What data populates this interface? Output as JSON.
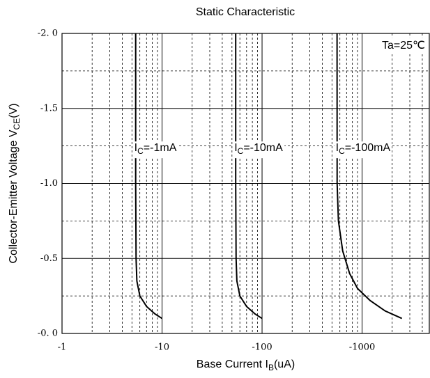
{
  "chart_data": {
    "type": "line",
    "title": "Static Characteristic",
    "x_label": {
      "text": "Base Current  I",
      "subscript": "B",
      "suffix": "(uA)"
    },
    "y_label": {
      "text": "Collector-Emitter Voltage  V",
      "subscript": "CE",
      "suffix": "(V)"
    },
    "annotation": "Ta=25℃",
    "x_log": true,
    "xlim": [
      -1,
      -4700
    ],
    "xticks": [
      -1,
      -10,
      -100,
      -1000
    ],
    "x_minor_ticks": [
      -2,
      -3,
      -4,
      -5,
      -6,
      -7,
      -8,
      -9,
      -20,
      -30,
      -40,
      -50,
      -60,
      -70,
      -80,
      -90,
      -200,
      -300,
      -400,
      -500,
      -600,
      -700,
      -800,
      -900,
      -2000,
      -3000,
      -4000
    ],
    "ylim": [
      0,
      -2
    ],
    "yticks": [
      {
        "value": 0,
        "label": "-0. 0"
      },
      -0.5,
      {
        "value": -1,
        "label": "-1.0"
      },
      -1.5,
      {
        "value": -2,
        "label": "-2. 0"
      }
    ],
    "y_minor_ticks": [
      -0.25,
      -0.75,
      -1.25,
      -1.75
    ],
    "grid": true,
    "series": [
      {
        "label": {
          "text": "I",
          "subscript": "C",
          "suffix": "=-1mA"
        },
        "color": "#000000",
        "x": [
          -5.45,
          -5.45,
          -5.5,
          -5.6,
          -6,
          -7,
          -8.5,
          -10
        ],
        "values": [
          -2,
          -1,
          -0.5,
          -0.35,
          -0.25,
          -0.18,
          -0.13,
          -0.1
        ]
      },
      {
        "label": {
          "text": "I",
          "subscript": "C",
          "suffix": "=-10mA"
        },
        "color": "#000000",
        "x": [
          -54.5,
          -54.5,
          -55,
          -56,
          -60,
          -70,
          -85,
          -100
        ],
        "values": [
          -2,
          -1,
          -0.5,
          -0.35,
          -0.25,
          -0.18,
          -0.13,
          -0.1
        ]
      },
      {
        "label": {
          "text": "I",
          "subscript": "C",
          "suffix": "=-100mA"
        },
        "color": "#000000",
        "x": [
          -562,
          -563,
          -580,
          -640,
          -750,
          -900,
          -1200,
          -1700,
          -2500
        ],
        "values": [
          -2,
          -1,
          -0.75,
          -0.55,
          -0.4,
          -0.3,
          -0.22,
          -0.15,
          -0.1
        ]
      }
    ]
  }
}
